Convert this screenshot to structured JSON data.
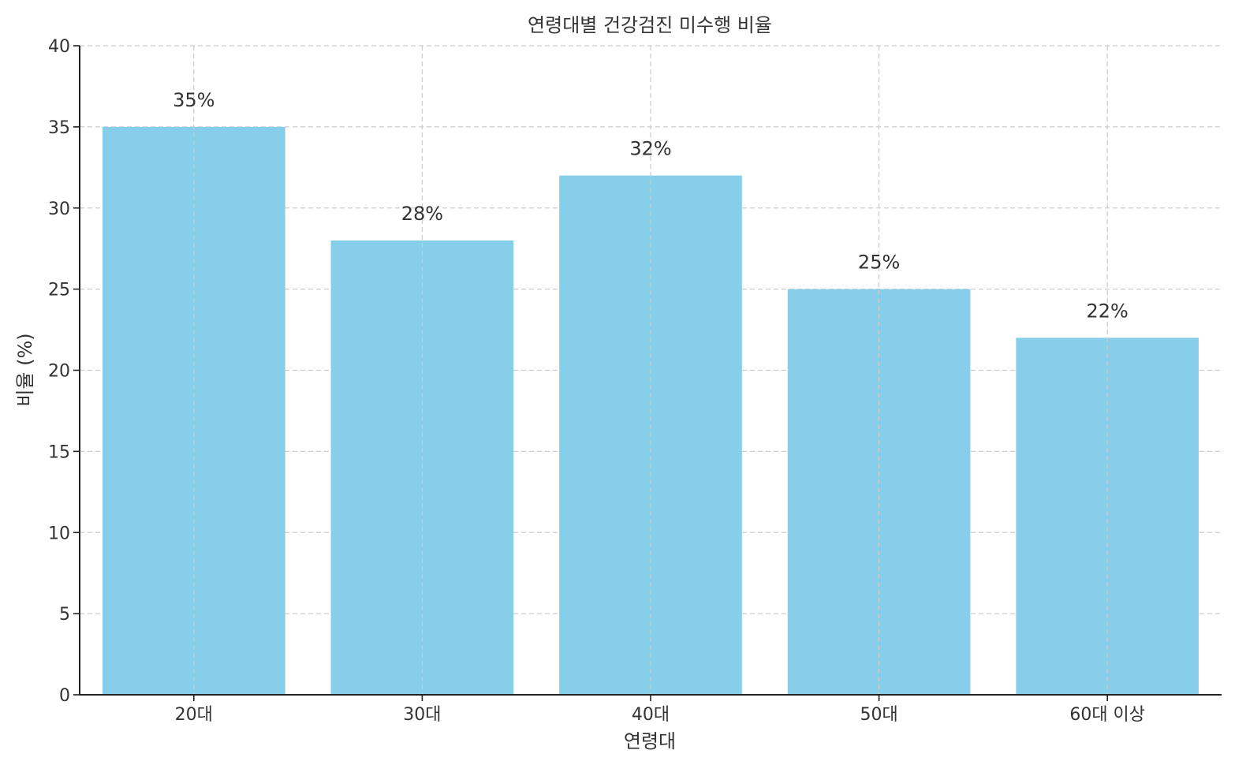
{
  "chart_data": {
    "type": "bar",
    "title": "연령대별 건강검진 미수행 비율",
    "xlabel": "연령대",
    "ylabel": "비율 (%)",
    "categories": [
      "20대",
      "30대",
      "40대",
      "50대",
      "60대 이상"
    ],
    "values": [
      35,
      28,
      32,
      25,
      22
    ],
    "data_labels": [
      "35%",
      "28%",
      "32%",
      "25%",
      "22%"
    ],
    "ylim": [
      0,
      40
    ],
    "yticks": [
      0,
      5,
      10,
      15,
      20,
      25,
      30,
      35,
      40
    ],
    "ytick_labels": [
      "0",
      "5",
      "10",
      "15",
      "20",
      "25",
      "30",
      "35",
      "40"
    ],
    "grid": true,
    "colors": {
      "bar": "#87CEEB",
      "grid": "#cccccc",
      "axis": "#222222",
      "text": "#333333"
    }
  }
}
